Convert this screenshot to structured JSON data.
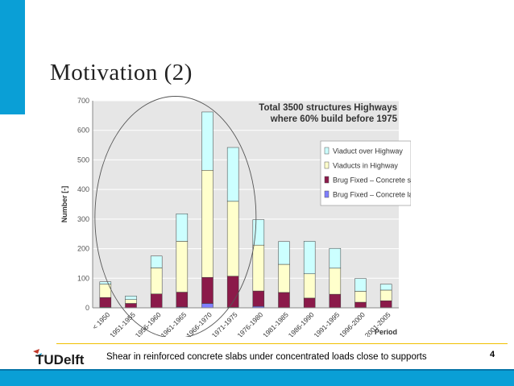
{
  "slide": {
    "title": "Motivation (2)",
    "footer_text": "Shear in reinforced concrete slabs under concentrated loads close to supports",
    "page_number": "4",
    "logo_text": "TUDelft",
    "accent_color": "#0a9fd6"
  },
  "chart_data": {
    "type": "bar",
    "stacked": true,
    "title": "Total 3500 structures Highways where 60% build before 1975",
    "title_lines": [
      "Total 3500 structures Highways",
      "where 60% build before 1975"
    ],
    "ylabel": "Number [-]",
    "xlabel": "Period",
    "ylim": [
      0,
      700
    ],
    "yticks": [
      0,
      100,
      200,
      300,
      400,
      500,
      600,
      700
    ],
    "grid": true,
    "legend_position": "right",
    "categories": [
      "< 1950",
      "1951-1955",
      "1956-1960",
      "1961-1965",
      "1966-1970",
      "1971-1975",
      "1976-1980",
      "1981-1985",
      "1986-1990",
      "1991-1995",
      "1996-2000",
      "2001-2005"
    ],
    "series": [
      {
        "name": "Brug Fixed – Concrete large",
        "color": "#7f7fff",
        "values": [
          2,
          0,
          0,
          3,
          15,
          2,
          5,
          1,
          0,
          1,
          1,
          1
        ]
      },
      {
        "name": "Brug Fixed – Concrete small",
        "color": "#8b1a4a",
        "values": [
          33,
          15,
          47,
          50,
          88,
          105,
          52,
          51,
          33,
          45,
          18,
          23
        ]
      },
      {
        "name": "Viaducts in Highway",
        "color": "#ffffcc",
        "values": [
          45,
          13,
          88,
          172,
          362,
          253,
          155,
          95,
          82,
          88,
          37,
          36
        ]
      },
      {
        "name": "Viaduct over Highway",
        "color": "#ccffff",
        "values": [
          8,
          12,
          40,
          93,
          197,
          182,
          86,
          77,
          110,
          67,
          43,
          20
        ]
      }
    ],
    "legend_order": [
      "Viaduct over Highway",
      "Viaducts in Highway",
      "Brug Fixed – Concrete small",
      "Brug Fixed – Concrete large"
    ],
    "annotation": "ellipse around 1956-1975"
  }
}
